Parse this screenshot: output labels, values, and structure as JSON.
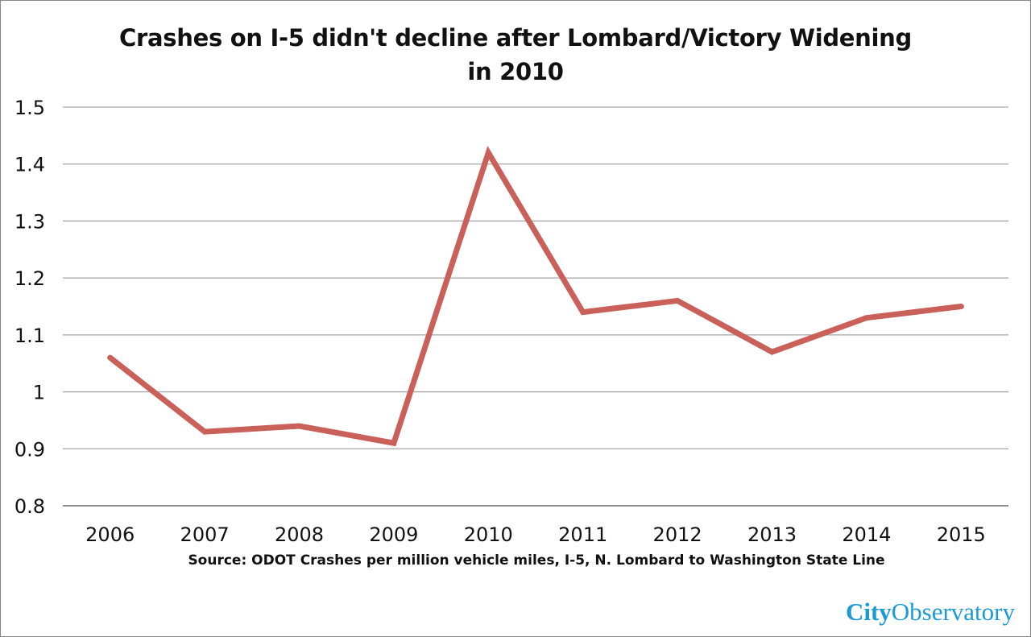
{
  "chart_data": {
    "type": "line",
    "title": "Crashes on I-5 didn't decline after Lombard/Victory Widening in 2010",
    "xlabel": "",
    "ylabel": "",
    "categories": [
      "2006",
      "2007",
      "2008",
      "2009",
      "2010",
      "2011",
      "2012",
      "2013",
      "2014",
      "2015"
    ],
    "series": [
      {
        "name": "Crashes per million vehicle miles",
        "values": [
          1.06,
          0.93,
          0.94,
          0.91,
          1.42,
          1.14,
          1.16,
          1.07,
          1.13,
          1.15
        ],
        "color": "#c9605a"
      }
    ],
    "ylim": [
      0.8,
      1.5
    ],
    "yticks": [
      0.8,
      0.9,
      1.0,
      1.1,
      1.2,
      1.3,
      1.4,
      1.5
    ],
    "ytick_labels": [
      "0.8",
      "0.9",
      "1",
      "1.1",
      "1.2",
      "1.3",
      "1.4",
      "1.5"
    ],
    "grid": true,
    "legend": "none",
    "source_note": "Source:  ODOT Crashes per million vehicle miles, I-5, N. Lombard to Washington State Line"
  },
  "branding": {
    "logo_city": "City",
    "logo_observatory": "Observatory",
    "logo_color": "#1a9bd6"
  }
}
